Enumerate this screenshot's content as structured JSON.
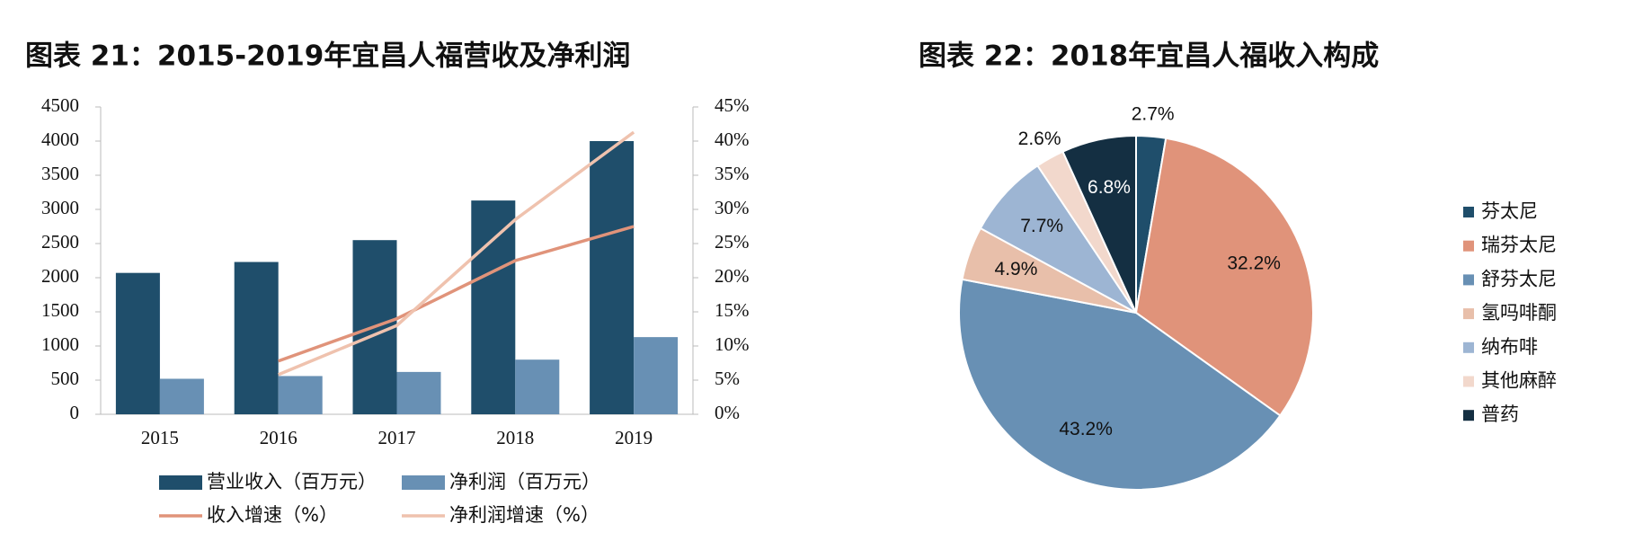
{
  "chart_data": [
    {
      "type": "bar",
      "title": "图表 21：2015-2019年宜昌人福营收及净利润",
      "categories": [
        "2015",
        "2016",
        "2017",
        "2018",
        "2019"
      ],
      "series": [
        {
          "name": "营业收入（百万元）",
          "type": "bar",
          "color": "#1f4e6b",
          "values": [
            2070,
            2230,
            2550,
            3130,
            4000
          ]
        },
        {
          "name": "净利润（百万元）",
          "type": "bar",
          "color": "#6890b4",
          "values": [
            520,
            560,
            620,
            800,
            1130
          ]
        },
        {
          "name": "收入增速（%）",
          "type": "line",
          "axis": "y2",
          "color": "#e0937a",
          "values": [
            null,
            7.8,
            14,
            22.5,
            27.5
          ]
        },
        {
          "name": "净利润增速（%）",
          "type": "line",
          "axis": "y2",
          "color": "#efc2ae",
          "values": [
            null,
            5.8,
            13,
            28.5,
            41.3
          ]
        }
      ],
      "ylim": [
        0,
        4500
      ],
      "yticks": [
        0,
        500,
        1000,
        1500,
        2000,
        2500,
        3000,
        3500,
        4000,
        4500
      ],
      "y2lim": [
        0,
        45
      ],
      "y2ticks": [
        {
          "value": 0,
          "label": "0%"
        },
        {
          "value": 5,
          "label": "5%"
        },
        {
          "value": 10,
          "label": "10%"
        },
        {
          "value": 15,
          "label": "15%"
        },
        {
          "value": 20,
          "label": "20%"
        },
        {
          "value": 25,
          "label": "25%"
        },
        {
          "value": 30,
          "label": "30%"
        },
        {
          "value": 35,
          "label": "35%"
        },
        {
          "value": 40,
          "label": "40%"
        },
        {
          "value": 45,
          "label": "45%"
        }
      ],
      "grid": false,
      "legend": "bottom"
    },
    {
      "type": "pie",
      "title": "图表 22：2018年宜昌人福收入构成",
      "categories": [
        "芬太尼",
        "瑞芬太尼",
        "舒芬太尼",
        "氢吗啡酮",
        "纳布啡",
        "其他麻醉",
        "普药"
      ],
      "values": [
        2.7,
        32.2,
        43.2,
        4.9,
        7.7,
        2.6,
        6.8
      ],
      "value_labels": [
        "2.7%",
        "32.2%",
        "43.2%",
        "4.9%",
        "7.7%",
        "2.6%",
        "6.8%"
      ],
      "colors": [
        "#1f4e6b",
        "#e0937a",
        "#6890b4",
        "#e8bfaa",
        "#9db5d3",
        "#f2d8cc",
        "#142f42"
      ],
      "legend": "right"
    }
  ]
}
